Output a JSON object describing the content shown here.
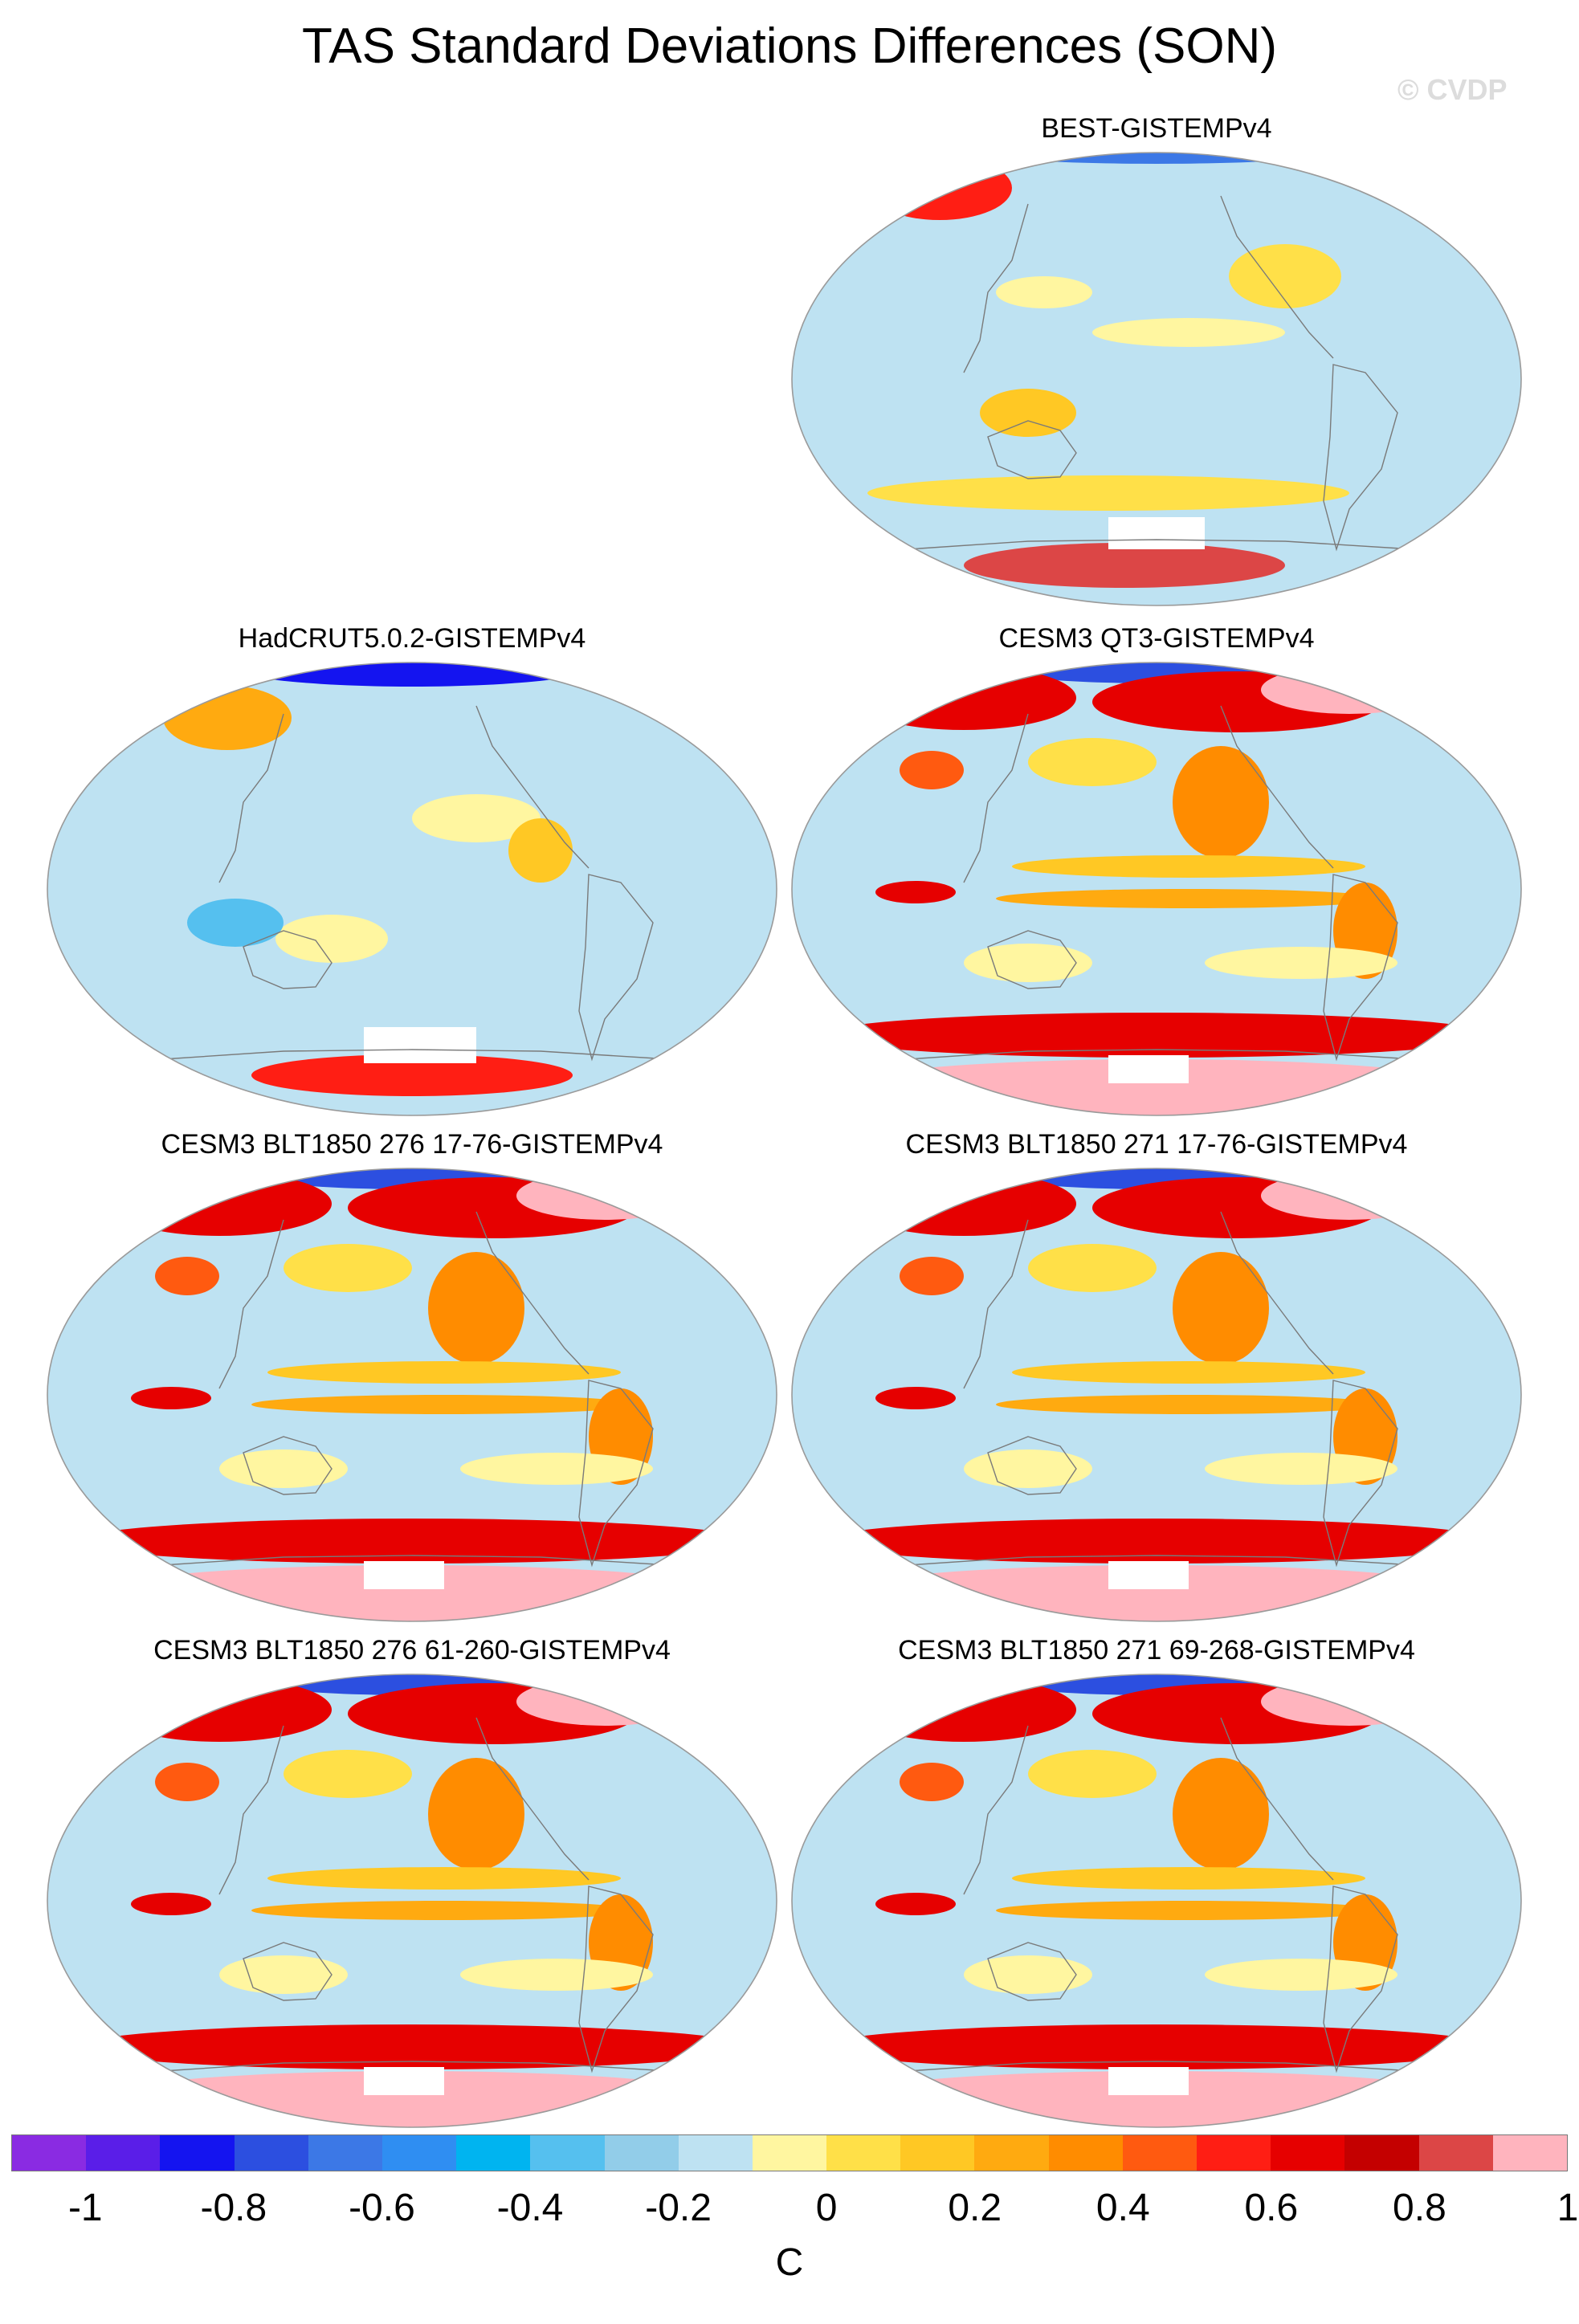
{
  "figure": {
    "title": "TAS Standard Deviations Differences (SON)",
    "copyright": "© CVDP"
  },
  "panels": [
    {
      "title": "BEST-GISTEMPv4",
      "pattern": "obs-best"
    },
    {
      "title": "HadCRUT5.0.2-GISTEMPv4",
      "pattern": "obs-hadcrut"
    },
    {
      "title": "CESM3 QT3-GISTEMPv4",
      "pattern": "model"
    },
    {
      "title": "CESM3 BLT1850 276 17-76-GISTEMPv4",
      "pattern": "model"
    },
    {
      "title": "CESM3 BLT1850 271 17-76-GISTEMPv4",
      "pattern": "model"
    },
    {
      "title": "CESM3 BLT1850 276 61-260-GISTEMPv4",
      "pattern": "model"
    },
    {
      "title": "CESM3 BLT1850 271 69-268-GISTEMPv4",
      "pattern": "model"
    }
  ],
  "colorbar": {
    "units": "C",
    "tick_labels": [
      "-1",
      "-0.8",
      "-0.6",
      "-0.4",
      "-0.2",
      "0",
      "0.2",
      "0.4",
      "0.6",
      "0.8",
      "1"
    ],
    "colors": [
      "#8a2be2",
      "#5a1ee8",
      "#1414f0",
      "#2c4fe0",
      "#3c78e6",
      "#2f8ef2",
      "#00b4f0",
      "#55c0ef",
      "#92cde9",
      "#bee2f2",
      "#fff6a0",
      "#ffe048",
      "#ffc824",
      "#ffaa10",
      "#ff8c00",
      "#ff5a10",
      "#ff1e14",
      "#e60000",
      "#c40000",
      "#dc4646",
      "#ffb4be"
    ]
  }
}
